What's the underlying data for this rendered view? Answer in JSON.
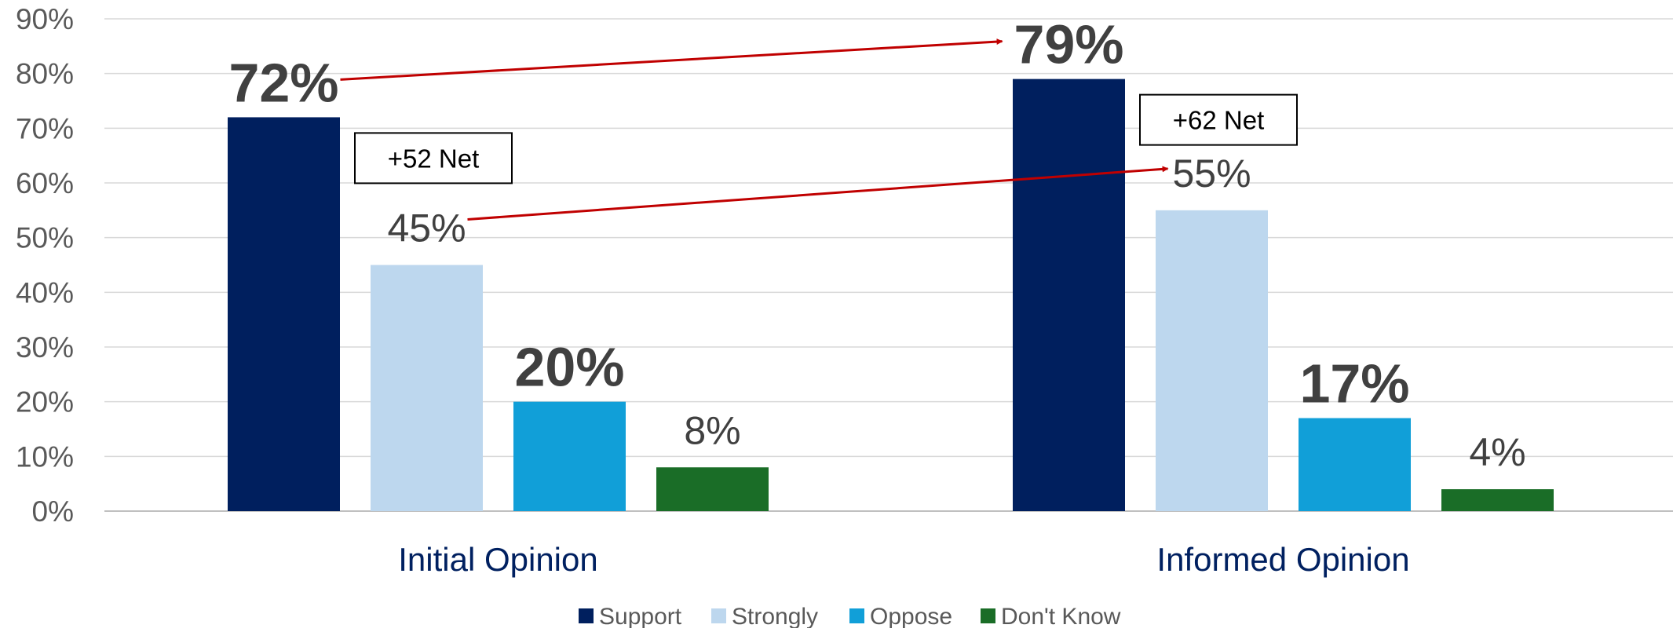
{
  "chart_data": {
    "type": "bar",
    "title": "",
    "xlabel": "",
    "ylabel": "",
    "ylim": [
      0,
      90
    ],
    "ytick_labels": [
      "0%",
      "10%",
      "20%",
      "30%",
      "40%",
      "50%",
      "60%",
      "70%",
      "80%",
      "90%"
    ],
    "categories": [
      "Initial Opinion",
      "Informed Opinion"
    ],
    "series": [
      {
        "name": "Support",
        "values": [
          72,
          79
        ],
        "labels": [
          "72%",
          "79%"
        ],
        "color": "#001F5E",
        "label_bold": true
      },
      {
        "name": "Strongly",
        "values": [
          45,
          55
        ],
        "labels": [
          "45%",
          "55%"
        ],
        "color": "#BDD7EE",
        "label_bold": false
      },
      {
        "name": "Oppose",
        "values": [
          20,
          17
        ],
        "labels": [
          "20%",
          "17%"
        ],
        "color": "#119FD8",
        "label_bold": true
      },
      {
        "name": "Don't Know",
        "values": [
          8,
          4
        ],
        "labels": [
          "8%",
          "4%"
        ],
        "color": "#1A6D27",
        "label_bold": false
      }
    ],
    "net_annotations": [
      "+52 Net",
      "+62 Net"
    ],
    "arrows": [
      {
        "from": "Support – Initial Opinion",
        "to": "Support – Informed Opinion",
        "color": "#C00000"
      },
      {
        "from": "Strongly – Initial Opinion",
        "to": "Strongly – Informed Opinion",
        "color": "#C00000"
      }
    ],
    "grid": true,
    "legend_position": "bottom"
  }
}
